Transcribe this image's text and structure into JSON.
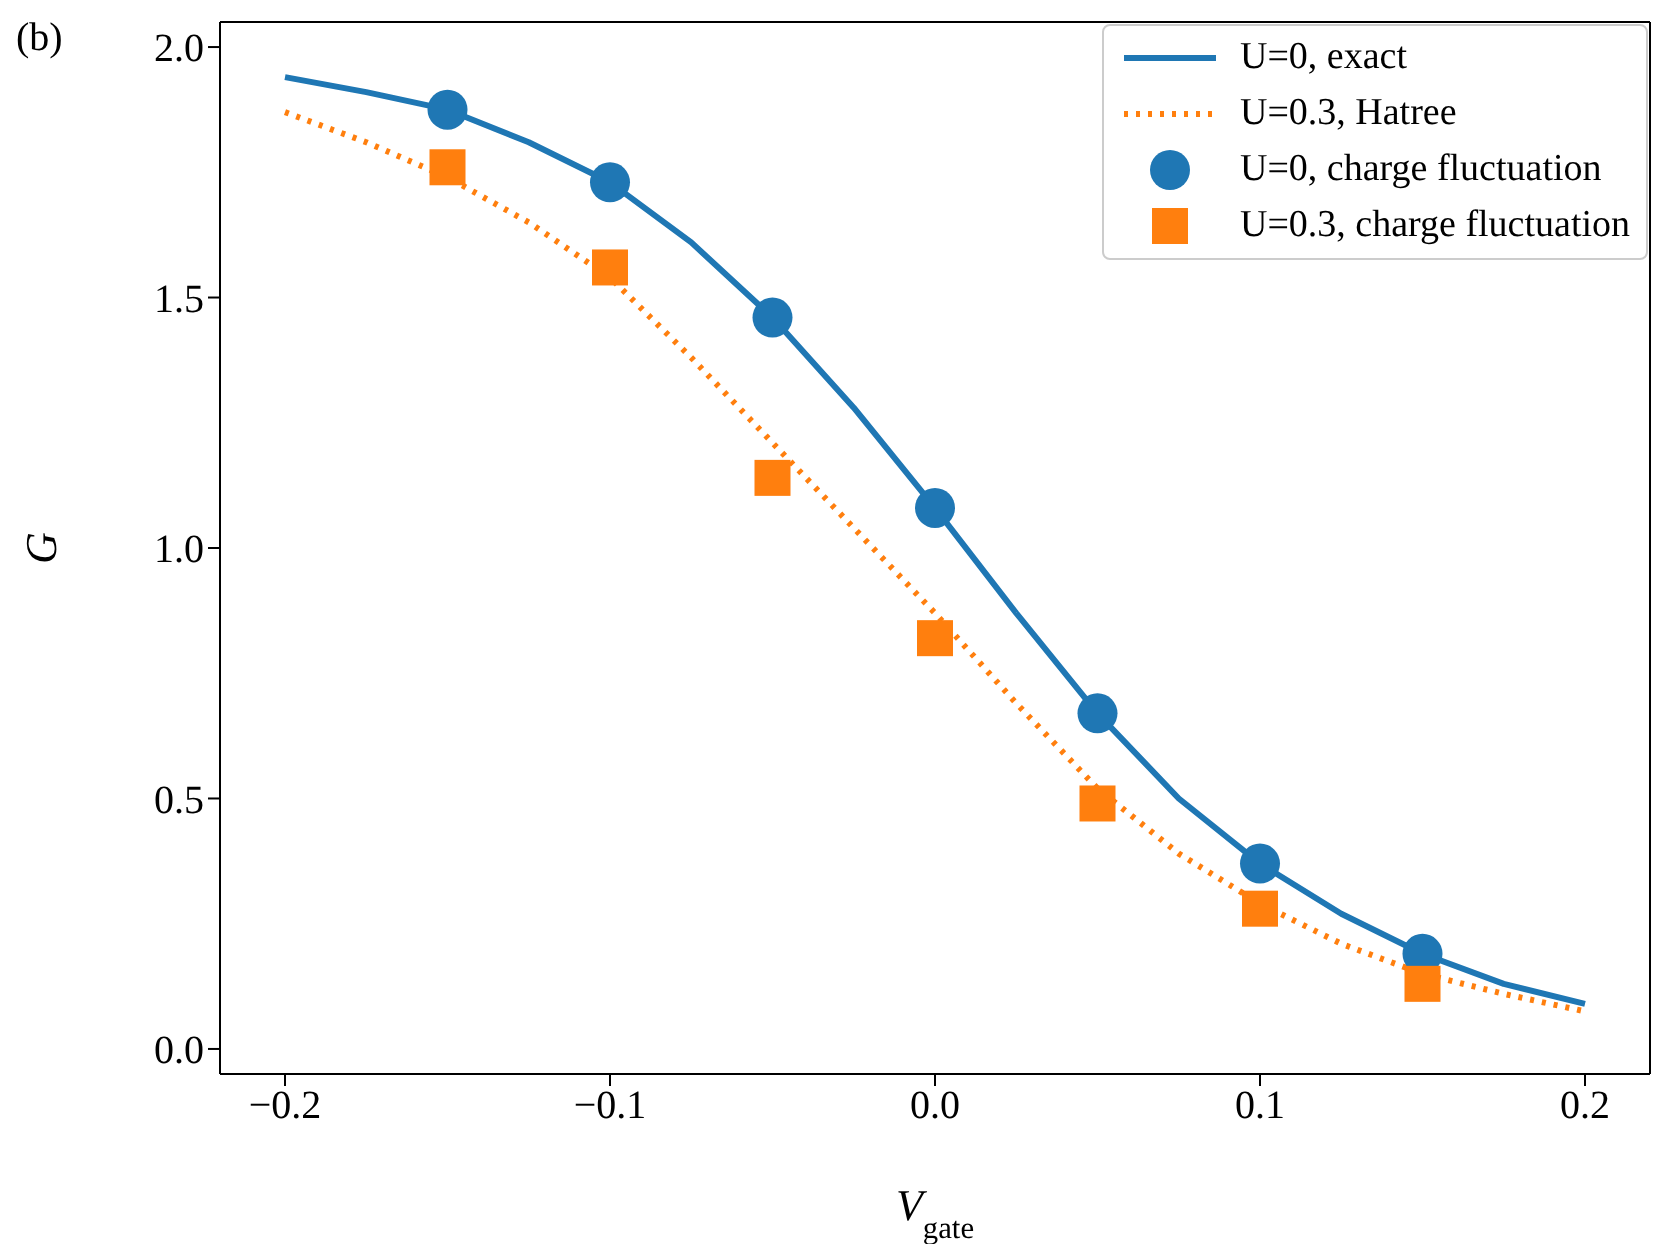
{
  "chart_data": {
    "type": "line",
    "annotations": [
      "(b)"
    ],
    "xlabel": "V$_{gate}$",
    "ylabel": "G",
    "xlim": [
      -0.22,
      0.22
    ],
    "ylim": [
      -0.05,
      2.05
    ],
    "xticks": [
      {
        "value": -0.2,
        "label": "−0.2"
      },
      {
        "value": -0.1,
        "label": "−0.1"
      },
      {
        "value": 0,
        "label": "0.0"
      },
      {
        "value": 0.1,
        "label": "0.1"
      },
      {
        "value": 0.2,
        "label": "0.2"
      }
    ],
    "yticks": [
      {
        "value": 0,
        "label": "0.0"
      },
      {
        "value": 0.5,
        "label": "0.5"
      },
      {
        "value": 1,
        "label": "1.0"
      },
      {
        "value": 1.5,
        "label": "1.5"
      },
      {
        "value": 2,
        "label": "2.0"
      }
    ],
    "legend": "top right",
    "series": [
      {
        "name": "U=0, exact",
        "color": "#1f77b4",
        "marker": "none",
        "line_style": "solid",
        "x": [
          -0.2,
          -0.175,
          -0.15,
          -0.125,
          -0.1,
          -0.075,
          -0.05,
          -0.025,
          0,
          0.025,
          0.05,
          0.075,
          0.1,
          0.125,
          0.15,
          0.175,
          0.2
        ],
        "values": [
          1.94,
          1.91,
          1.875,
          1.81,
          1.73,
          1.61,
          1.46,
          1.28,
          1.08,
          0.87,
          0.67,
          0.5,
          0.37,
          0.27,
          0.19,
          0.13,
          0.09
        ]
      },
      {
        "name": "U=0.3, Hatree",
        "color": "#ff7f0e",
        "marker": "none",
        "line_style": "dotted",
        "x": [
          -0.2,
          -0.175,
          -0.15,
          -0.125,
          -0.1,
          -0.075,
          -0.05,
          -0.025,
          0,
          0.025,
          0.05,
          0.075,
          0.1,
          0.125,
          0.15,
          0.175,
          0.2
        ],
        "values": [
          1.87,
          1.81,
          1.74,
          1.65,
          1.54,
          1.38,
          1.21,
          1.04,
          0.87,
          0.69,
          0.52,
          0.39,
          0.29,
          0.21,
          0.15,
          0.11,
          0.075
        ]
      },
      {
        "name": "U=0, charge fluctuation",
        "type": "scatter",
        "color": "#1f77b4",
        "marker": "circle",
        "x": [
          -0.15,
          -0.1,
          -0.05,
          0,
          0.05,
          0.1,
          0.15
        ],
        "values": [
          1.875,
          1.73,
          1.46,
          1.08,
          0.67,
          0.37,
          0.19
        ]
      },
      {
        "name": "U=0.3, charge fluctuation",
        "type": "scatter",
        "color": "#ff7f0e",
        "marker": "square",
        "x": [
          -0.15,
          -0.1,
          -0.05,
          0,
          0.05,
          0.1,
          0.15
        ],
        "values": [
          1.76,
          1.56,
          1.14,
          0.82,
          0.49,
          0.28,
          0.13
        ]
      }
    ]
  }
}
